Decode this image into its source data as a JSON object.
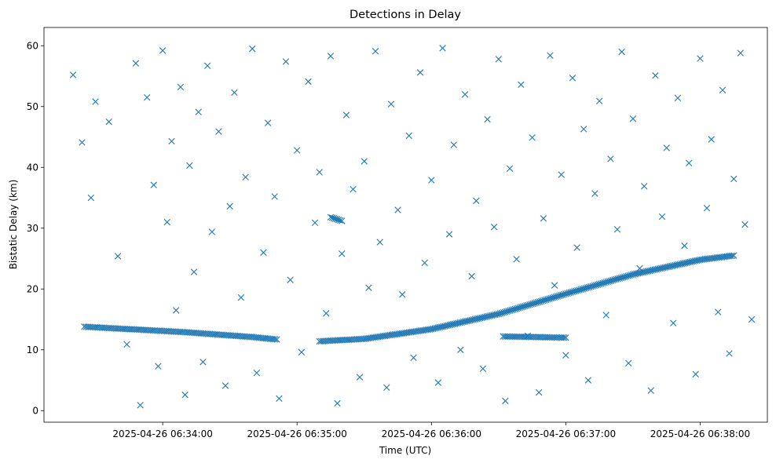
{
  "chart_data": {
    "type": "scatter",
    "title": "Detections in Delay",
    "xlabel": "Time (UTC)",
    "ylabel": "Bistatic Delay (km)",
    "x_ticks": [
      "2025-04-26 06:34:00",
      "2025-04-26 06:35:00",
      "2025-04-26 06:36:00",
      "2025-04-26 06:37:00",
      "2025-04-26 06:38:00"
    ],
    "y_ticks": [
      "0",
      "10",
      "20",
      "30",
      "40",
      "50",
      "60"
    ],
    "xlim": [
      "2025-04-26 06:33:07",
      "2025-04-26 06:38:30"
    ],
    "ylim": [
      -1.9,
      63
    ],
    "marker": "x",
    "grid": false,
    "color": "#1f77b4",
    "tracks": [
      {
        "x": [
          "2025-04-26 06:33:25",
          "2025-04-26 06:33:40",
          "2025-04-26 06:33:55",
          "2025-04-26 06:34:10",
          "2025-04-26 06:34:25",
          "2025-04-26 06:34:40",
          "2025-04-26 06:34:51"
        ],
        "y": [
          13.8,
          13.5,
          13.2,
          12.9,
          12.5,
          12.1,
          11.7
        ]
      },
      {
        "x": [
          "2025-04-26 06:35:10",
          "2025-04-26 06:35:30",
          "2025-04-26 06:36:00",
          "2025-04-26 06:36:30",
          "2025-04-26 06:37:00",
          "2025-04-26 06:37:30",
          "2025-04-26 06:38:00",
          "2025-04-26 06:38:15"
        ],
        "y": [
          11.4,
          11.8,
          13.4,
          15.9,
          19.2,
          22.4,
          24.8,
          25.5
        ]
      },
      {
        "x": [
          "2025-04-26 06:35:15",
          "2025-04-26 06:35:20"
        ],
        "y": [
          31.8,
          31.2
        ]
      },
      {
        "x": [
          "2025-04-26 06:36:32",
          "2025-04-26 06:37:00"
        ],
        "y": [
          12.2,
          12.0
        ]
      }
    ],
    "scatter_points": [
      [
        "2025-04-26 06:33:20",
        55.2
      ],
      [
        "2025-04-26 06:33:24",
        44.1
      ],
      [
        "2025-04-26 06:33:28",
        35.0
      ],
      [
        "2025-04-26 06:33:30",
        50.8
      ],
      [
        "2025-04-26 06:33:36",
        47.5
      ],
      [
        "2025-04-26 06:33:40",
        25.4
      ],
      [
        "2025-04-26 06:33:44",
        10.9
      ],
      [
        "2025-04-26 06:33:48",
        57.1
      ],
      [
        "2025-04-26 06:33:50",
        0.9
      ],
      [
        "2025-04-26 06:33:53",
        51.5
      ],
      [
        "2025-04-26 06:33:56",
        37.1
      ],
      [
        "2025-04-26 06:33:58",
        7.3
      ],
      [
        "2025-04-26 06:34:00",
        59.2
      ],
      [
        "2025-04-26 06:34:02",
        31.0
      ],
      [
        "2025-04-26 06:34:04",
        44.3
      ],
      [
        "2025-04-26 06:34:06",
        16.5
      ],
      [
        "2025-04-26 06:34:08",
        53.2
      ],
      [
        "2025-04-26 06:34:10",
        2.6
      ],
      [
        "2025-04-26 06:34:12",
        40.3
      ],
      [
        "2025-04-26 06:34:14",
        22.8
      ],
      [
        "2025-04-26 06:34:16",
        49.1
      ],
      [
        "2025-04-26 06:34:18",
        8.0
      ],
      [
        "2025-04-26 06:34:20",
        56.7
      ],
      [
        "2025-04-26 06:34:22",
        29.4
      ],
      [
        "2025-04-26 06:34:25",
        45.9
      ],
      [
        "2025-04-26 06:34:28",
        4.1
      ],
      [
        "2025-04-26 06:34:30",
        33.6
      ],
      [
        "2025-04-26 06:34:32",
        52.3
      ],
      [
        "2025-04-26 06:34:35",
        18.6
      ],
      [
        "2025-04-26 06:34:37",
        38.4
      ],
      [
        "2025-04-26 06:34:40",
        59.5
      ],
      [
        "2025-04-26 06:34:42",
        6.2
      ],
      [
        "2025-04-26 06:34:45",
        26.0
      ],
      [
        "2025-04-26 06:34:47",
        47.3
      ],
      [
        "2025-04-26 06:34:50",
        35.2
      ],
      [
        "2025-04-26 06:34:52",
        2.0
      ],
      [
        "2025-04-26 06:34:55",
        57.4
      ],
      [
        "2025-04-26 06:34:57",
        21.5
      ],
      [
        "2025-04-26 06:35:00",
        42.8
      ],
      [
        "2025-04-26 06:35:02",
        9.6
      ],
      [
        "2025-04-26 06:35:05",
        54.1
      ],
      [
        "2025-04-26 06:35:08",
        30.9
      ],
      [
        "2025-04-26 06:35:10",
        39.2
      ],
      [
        "2025-04-26 06:35:13",
        16.0
      ],
      [
        "2025-04-26 06:35:15",
        58.3
      ],
      [
        "2025-04-26 06:35:18",
        1.2
      ],
      [
        "2025-04-26 06:35:20",
        25.8
      ],
      [
        "2025-04-26 06:35:22",
        48.6
      ],
      [
        "2025-04-26 06:35:25",
        36.4
      ],
      [
        "2025-04-26 06:35:28",
        5.5
      ],
      [
        "2025-04-26 06:35:30",
        41.0
      ],
      [
        "2025-04-26 06:35:32",
        20.2
      ],
      [
        "2025-04-26 06:35:35",
        59.1
      ],
      [
        "2025-04-26 06:35:37",
        27.7
      ],
      [
        "2025-04-26 06:35:40",
        3.8
      ],
      [
        "2025-04-26 06:35:42",
        50.4
      ],
      [
        "2025-04-26 06:35:45",
        33.0
      ],
      [
        "2025-04-26 06:35:47",
        19.1
      ],
      [
        "2025-04-26 06:35:50",
        45.2
      ],
      [
        "2025-04-26 06:35:52",
        8.7
      ],
      [
        "2025-04-26 06:35:55",
        55.6
      ],
      [
        "2025-04-26 06:35:57",
        24.3
      ],
      [
        "2025-04-26 06:36:00",
        37.9
      ],
      [
        "2025-04-26 06:36:03",
        4.6
      ],
      [
        "2025-04-26 06:36:05",
        59.6
      ],
      [
        "2025-04-26 06:36:08",
        29.0
      ],
      [
        "2025-04-26 06:36:10",
        43.7
      ],
      [
        "2025-04-26 06:36:13",
        10.0
      ],
      [
        "2025-04-26 06:36:15",
        52.0
      ],
      [
        "2025-04-26 06:36:18",
        22.1
      ],
      [
        "2025-04-26 06:36:20",
        34.5
      ],
      [
        "2025-04-26 06:36:23",
        6.9
      ],
      [
        "2025-04-26 06:36:25",
        47.9
      ],
      [
        "2025-04-26 06:36:28",
        30.2
      ],
      [
        "2025-04-26 06:36:30",
        57.8
      ],
      [
        "2025-04-26 06:36:33",
        1.6
      ],
      [
        "2025-04-26 06:36:35",
        39.8
      ],
      [
        "2025-04-26 06:36:38",
        24.9
      ],
      [
        "2025-04-26 06:36:40",
        53.6
      ],
      [
        "2025-04-26 06:36:43",
        12.3
      ],
      [
        "2025-04-26 06:36:45",
        44.9
      ],
      [
        "2025-04-26 06:36:48",
        3.0
      ],
      [
        "2025-04-26 06:36:50",
        31.6
      ],
      [
        "2025-04-26 06:36:53",
        58.4
      ],
      [
        "2025-04-26 06:36:55",
        20.6
      ],
      [
        "2025-04-26 06:36:58",
        38.8
      ],
      [
        "2025-04-26 06:37:00",
        9.1
      ],
      [
        "2025-04-26 06:37:03",
        54.7
      ],
      [
        "2025-04-26 06:37:05",
        26.8
      ],
      [
        "2025-04-26 06:37:08",
        46.3
      ],
      [
        "2025-04-26 06:37:10",
        5.0
      ],
      [
        "2025-04-26 06:37:13",
        35.7
      ],
      [
        "2025-04-26 06:37:15",
        50.9
      ],
      [
        "2025-04-26 06:37:18",
        15.7
      ],
      [
        "2025-04-26 06:37:20",
        41.4
      ],
      [
        "2025-04-26 06:37:23",
        29.8
      ],
      [
        "2025-04-26 06:37:25",
        59.0
      ],
      [
        "2025-04-26 06:37:28",
        7.8
      ],
      [
        "2025-04-26 06:37:30",
        48.0
      ],
      [
        "2025-04-26 06:37:33",
        23.4
      ],
      [
        "2025-04-26 06:37:35",
        36.9
      ],
      [
        "2025-04-26 06:37:38",
        3.3
      ],
      [
        "2025-04-26 06:37:40",
        55.1
      ],
      [
        "2025-04-26 06:37:43",
        31.9
      ],
      [
        "2025-04-26 06:37:45",
        43.2
      ],
      [
        "2025-04-26 06:37:48",
        14.4
      ],
      [
        "2025-04-26 06:37:50",
        51.4
      ],
      [
        "2025-04-26 06:37:53",
        27.1
      ],
      [
        "2025-04-26 06:37:55",
        40.7
      ],
      [
        "2025-04-26 06:37:58",
        6.0
      ],
      [
        "2025-04-26 06:38:00",
        57.9
      ],
      [
        "2025-04-26 06:38:03",
        33.3
      ],
      [
        "2025-04-26 06:38:05",
        44.6
      ],
      [
        "2025-04-26 06:38:08",
        16.2
      ],
      [
        "2025-04-26 06:38:10",
        52.7
      ],
      [
        "2025-04-26 06:38:13",
        9.4
      ],
      [
        "2025-04-26 06:38:15",
        38.1
      ],
      [
        "2025-04-26 06:38:18",
        58.8
      ],
      [
        "2025-04-26 06:38:20",
        30.6
      ],
      [
        "2025-04-26 06:38:23",
        15.0
      ]
    ]
  }
}
